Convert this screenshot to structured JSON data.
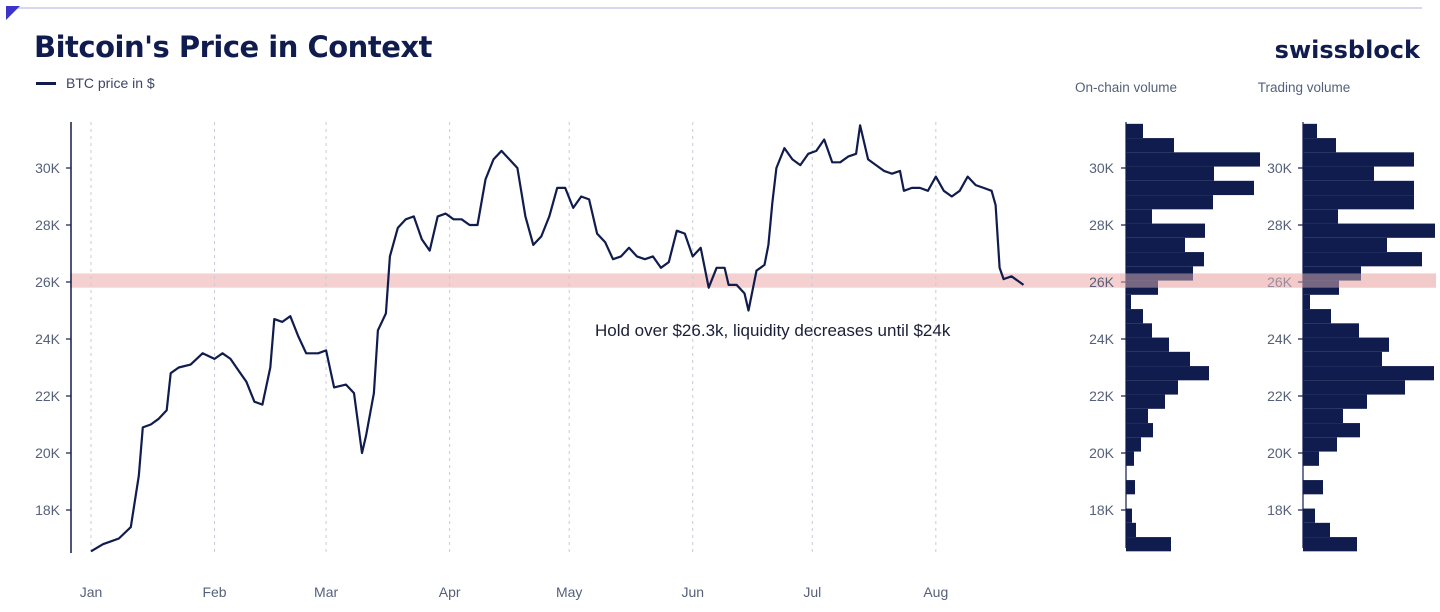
{
  "header": {
    "title": "Bitcoin's Price in Context",
    "logo": "swissblock",
    "legend_label": "BTC price in $"
  },
  "colors": {
    "line": "#101c4d",
    "band": "#f2c4c4",
    "grid": "#c8cbd8",
    "text": "#55607a"
  },
  "chart_data": [
    {
      "type": "line",
      "title": "Bitcoin's Price in Context",
      "series": [
        {
          "name": "BTC price in $",
          "points": [
            [
              "2023-01-01",
              16550
            ],
            [
              "2023-01-04",
              16800
            ],
            [
              "2023-01-08",
              17000
            ],
            [
              "2023-01-11",
              17400
            ],
            [
              "2023-01-13",
              19200
            ],
            [
              "2023-01-14",
              20900
            ],
            [
              "2023-01-16",
              21000
            ],
            [
              "2023-01-18",
              21200
            ],
            [
              "2023-01-20",
              21500
            ],
            [
              "2023-01-21",
              22800
            ],
            [
              "2023-01-23",
              23000
            ],
            [
              "2023-01-26",
              23100
            ],
            [
              "2023-01-29",
              23500
            ],
            [
              "2023-02-01",
              23300
            ],
            [
              "2023-02-03",
              23500
            ],
            [
              "2023-02-05",
              23300
            ],
            [
              "2023-02-07",
              22900
            ],
            [
              "2023-02-09",
              22500
            ],
            [
              "2023-02-11",
              21800
            ],
            [
              "2023-02-13",
              21700
            ],
            [
              "2023-02-15",
              23000
            ],
            [
              "2023-02-16",
              24700
            ],
            [
              "2023-02-18",
              24600
            ],
            [
              "2023-02-20",
              24800
            ],
            [
              "2023-02-22",
              24100
            ],
            [
              "2023-02-24",
              23500
            ],
            [
              "2023-02-27",
              23500
            ],
            [
              "2023-03-01",
              23600
            ],
            [
              "2023-03-03",
              22300
            ],
            [
              "2023-03-06",
              22400
            ],
            [
              "2023-03-08",
              22100
            ],
            [
              "2023-03-10",
              20000
            ],
            [
              "2023-03-11",
              20600
            ],
            [
              "2023-03-13",
              22100
            ],
            [
              "2023-03-14",
              24300
            ],
            [
              "2023-03-16",
              24900
            ],
            [
              "2023-03-17",
              26900
            ],
            [
              "2023-03-19",
              27900
            ],
            [
              "2023-03-21",
              28200
            ],
            [
              "2023-03-23",
              28300
            ],
            [
              "2023-03-25",
              27500
            ],
            [
              "2023-03-27",
              27100
            ],
            [
              "2023-03-29",
              28300
            ],
            [
              "2023-03-31",
              28400
            ],
            [
              "2023-04-02",
              28200
            ],
            [
              "2023-04-04",
              28200
            ],
            [
              "2023-04-06",
              28000
            ],
            [
              "2023-04-08",
              28000
            ],
            [
              "2023-04-10",
              29600
            ],
            [
              "2023-04-12",
              30300
            ],
            [
              "2023-04-14",
              30600
            ],
            [
              "2023-04-16",
              30300
            ],
            [
              "2023-04-18",
              30000
            ],
            [
              "2023-04-20",
              28300
            ],
            [
              "2023-04-22",
              27300
            ],
            [
              "2023-04-24",
              27600
            ],
            [
              "2023-04-26",
              28300
            ],
            [
              "2023-04-28",
              29300
            ],
            [
              "2023-04-30",
              29300
            ],
            [
              "2023-05-02",
              28600
            ],
            [
              "2023-05-04",
              29000
            ],
            [
              "2023-05-06",
              28900
            ],
            [
              "2023-05-08",
              27700
            ],
            [
              "2023-05-10",
              27400
            ],
            [
              "2023-05-12",
              26800
            ],
            [
              "2023-05-14",
              26900
            ],
            [
              "2023-05-16",
              27200
            ],
            [
              "2023-05-18",
              26900
            ],
            [
              "2023-05-20",
              26800
            ],
            [
              "2023-05-22",
              26900
            ],
            [
              "2023-05-24",
              26500
            ],
            [
              "2023-05-26",
              26700
            ],
            [
              "2023-05-28",
              27800
            ],
            [
              "2023-05-30",
              27700
            ],
            [
              "2023-06-01",
              26900
            ],
            [
              "2023-06-03",
              27200
            ],
            [
              "2023-06-05",
              25800
            ],
            [
              "2023-06-07",
              26500
            ],
            [
              "2023-06-09",
              26500
            ],
            [
              "2023-06-10",
              25900
            ],
            [
              "2023-06-12",
              25900
            ],
            [
              "2023-06-14",
              25600
            ],
            [
              "2023-06-15",
              25000
            ],
            [
              "2023-06-17",
              26400
            ],
            [
              "2023-06-19",
              26600
            ],
            [
              "2023-06-20",
              27300
            ],
            [
              "2023-06-21",
              28800
            ],
            [
              "2023-06-22",
              30000
            ],
            [
              "2023-06-24",
              30700
            ],
            [
              "2023-06-26",
              30300
            ],
            [
              "2023-06-28",
              30100
            ],
            [
              "2023-06-30",
              30500
            ],
            [
              "2023-07-02",
              30600
            ],
            [
              "2023-07-04",
              31000
            ],
            [
              "2023-07-06",
              30200
            ],
            [
              "2023-07-08",
              30200
            ],
            [
              "2023-07-10",
              30400
            ],
            [
              "2023-07-12",
              30500
            ],
            [
              "2023-07-13",
              31500
            ],
            [
              "2023-07-15",
              30300
            ],
            [
              "2023-07-17",
              30100
            ],
            [
              "2023-07-19",
              29900
            ],
            [
              "2023-07-21",
              29800
            ],
            [
              "2023-07-23",
              29900
            ],
            [
              "2023-07-24",
              29200
            ],
            [
              "2023-07-26",
              29300
            ],
            [
              "2023-07-28",
              29300
            ],
            [
              "2023-07-30",
              29200
            ],
            [
              "2023-08-01",
              29700
            ],
            [
              "2023-08-03",
              29200
            ],
            [
              "2023-08-05",
              29000
            ],
            [
              "2023-08-07",
              29200
            ],
            [
              "2023-08-09",
              29700
            ],
            [
              "2023-08-11",
              29400
            ],
            [
              "2023-08-13",
              29300
            ],
            [
              "2023-08-15",
              29200
            ],
            [
              "2023-08-16",
              28700
            ],
            [
              "2023-08-17",
              26500
            ],
            [
              "2023-08-18",
              26100
            ],
            [
              "2023-08-20",
              26200
            ],
            [
              "2023-08-22",
              26000
            ],
            [
              "2023-08-23",
              25900
            ]
          ]
        }
      ],
      "x_ticks": [
        "Jan",
        "Feb",
        "Mar",
        "Apr",
        "May",
        "Jun",
        "Jul",
        "Aug"
      ],
      "y_ticks": [
        "18K",
        "20K",
        "22K",
        "24K",
        "26K",
        "28K",
        "30K"
      ],
      "ylim": [
        16500,
        31700
      ],
      "band": [
        25800,
        26300
      ],
      "annotation": "Hold over $26.3k, liquidity decreases until $24k",
      "grid": "vertical dashed"
    },
    {
      "type": "bar",
      "orientation": "horizontal",
      "title": "On-chain volume",
      "bins": [
        16800,
        17300,
        17800,
        18300,
        18800,
        19300,
        19800,
        20300,
        20800,
        21300,
        21800,
        22300,
        22800,
        23300,
        23800,
        24300,
        24800,
        25300,
        25800,
        26300,
        26800,
        27300,
        27800,
        28300,
        28800,
        29300,
        29800,
        30300,
        30800,
        31300
      ],
      "values": [
        45,
        10,
        6,
        0,
        9,
        0,
        8,
        15,
        27,
        22,
        39,
        52,
        83,
        64,
        43,
        26,
        17,
        5,
        32,
        67,
        78,
        59,
        79,
        26,
        87,
        128,
        88,
        134,
        48,
        17
      ],
      "y_ticks": [
        "18K",
        "20K",
        "22K",
        "24K",
        "26K",
        "28K",
        "30K"
      ]
    },
    {
      "type": "bar",
      "orientation": "horizontal",
      "title": "Trading volume",
      "bins": [
        16800,
        17300,
        17800,
        18300,
        18800,
        19300,
        19800,
        20300,
        20800,
        21300,
        21800,
        22300,
        22800,
        23300,
        23800,
        24300,
        24800,
        25300,
        25800,
        26300,
        26800,
        27300,
        27800,
        28300,
        28800,
        29300,
        29800,
        30300,
        30800,
        31300
      ],
      "values": [
        54,
        27,
        12,
        0,
        20,
        0,
        16,
        34,
        57,
        40,
        64,
        102,
        131,
        79,
        86,
        56,
        28,
        7,
        36,
        58,
        119,
        84,
        132,
        35,
        111,
        111,
        71,
        111,
        33,
        14
      ],
      "y_ticks": [
        "18K",
        "20K",
        "22K",
        "24K",
        "26K",
        "28K",
        "30K"
      ]
    }
  ]
}
